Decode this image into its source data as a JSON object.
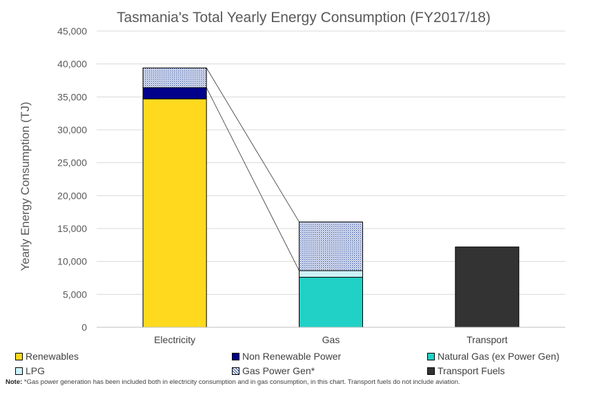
{
  "chart_data": {
    "type": "bar",
    "stacked": true,
    "title": "Tasmania's Total Yearly Energy Consumption (FY2017/18)",
    "ylabel": "Yearly Energy Consumption (TJ)",
    "xlabel": "",
    "ylim": [
      0,
      45000
    ],
    "yticks": [
      "0",
      "5,000",
      "10,000",
      "15,000",
      "20,000",
      "25,000",
      "30,000",
      "35,000",
      "40,000",
      "45,000"
    ],
    "ytick_values": [
      0,
      5000,
      10000,
      15000,
      20000,
      25000,
      30000,
      35000,
      40000,
      45000
    ],
    "grid": true,
    "categories": [
      "Electricity",
      "Gas",
      "Transport"
    ],
    "series": [
      {
        "name": "Renewables",
        "color": "#FFD91E",
        "values": [
          34700,
          0,
          0
        ]
      },
      {
        "name": "Non Renewable Power",
        "color": "#00008B",
        "values": [
          1700,
          0,
          0
        ]
      },
      {
        "name": "Natural Gas (ex Power Gen)",
        "color": "#22D1C6",
        "values": [
          0,
          7600,
          0
        ]
      },
      {
        "name": "LPG",
        "color": "#CCF2F8",
        "values": [
          0,
          1000,
          0
        ]
      },
      {
        "name": "Gas Power Gen*",
        "color": "#2F4FA0",
        "pattern": "dots",
        "values": [
          3000,
          7400,
          0
        ]
      },
      {
        "name": "Transport Fuels",
        "color": "#333333",
        "values": [
          0,
          0,
          12200
        ]
      }
    ],
    "legend_position": "bottom"
  },
  "note": {
    "label": "Note:",
    "text": "*Gas power generation has been included both in electricity consumption and in gas consumption, in this chart. Transport fuels do not include aviation."
  }
}
